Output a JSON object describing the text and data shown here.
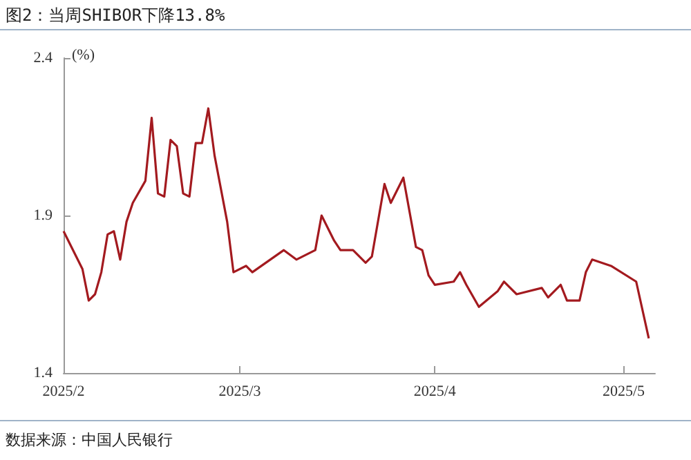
{
  "chart_data": {
    "type": "line",
    "title": "图2：当周SHIBOR下降13.8%",
    "ylabel": "(%)",
    "annotations": [
      "数据来源：中国人民银行"
    ],
    "x": [
      "2025-02-01",
      "2025-02-04",
      "2025-02-05",
      "2025-02-06",
      "2025-02-07",
      "2025-02-08",
      "2025-02-09",
      "2025-02-10",
      "2025-02-11",
      "2025-02-12",
      "2025-02-14",
      "2025-02-15",
      "2025-02-16",
      "2025-02-17",
      "2025-02-18",
      "2025-02-19",
      "2025-02-20",
      "2025-02-21",
      "2025-02-22",
      "2025-02-23",
      "2025-02-24",
      "2025-02-25",
      "2025-02-27",
      "2025-02-28",
      "2025-03-02",
      "2025-03-03",
      "2025-03-08",
      "2025-03-10",
      "2025-03-13",
      "2025-03-14",
      "2025-03-16",
      "2025-03-17",
      "2025-03-19",
      "2025-03-21",
      "2025-03-22",
      "2025-03-24",
      "2025-03-25",
      "2025-03-26",
      "2025-03-27",
      "2025-03-29",
      "2025-03-30",
      "2025-03-31",
      "2025-04-01",
      "2025-04-04",
      "2025-04-05",
      "2025-04-06",
      "2025-04-08",
      "2025-04-11",
      "2025-04-12",
      "2025-04-14",
      "2025-04-18",
      "2025-04-19",
      "2025-04-21",
      "2025-04-22",
      "2025-04-24",
      "2025-04-25",
      "2025-04-26",
      "2025-04-29",
      "2025-05-03",
      "2025-05-05"
    ],
    "series": [
      {
        "color": "#a31a1f",
        "values": [
          1.85,
          1.73,
          1.63,
          1.65,
          1.72,
          1.84,
          1.85,
          1.76,
          1.88,
          1.94,
          2.01,
          2.21,
          1.97,
          1.96,
          2.14,
          2.12,
          1.97,
          1.96,
          2.13,
          2.13,
          2.24,
          2.09,
          1.88,
          1.72,
          1.74,
          1.72,
          1.79,
          1.76,
          1.79,
          1.9,
          1.82,
          1.79,
          1.79,
          1.75,
          1.77,
          2.0,
          1.94,
          1.98,
          2.02,
          1.8,
          1.79,
          1.71,
          1.68,
          1.69,
          1.72,
          1.68,
          1.61,
          1.66,
          1.69,
          1.65,
          1.67,
          1.64,
          1.68,
          1.63,
          1.63,
          1.72,
          1.76,
          1.74,
          1.69,
          1.51
        ]
      }
    ],
    "xlim": [
      "2025-02-01",
      "2025-05-06"
    ],
    "xticks": [
      {
        "value": "2025-02-01",
        "label": "2025/2"
      },
      {
        "value": "2025-03-01",
        "label": "2025/3"
      },
      {
        "value": "2025-04-01",
        "label": "2025/4"
      },
      {
        "value": "2025-05-01",
        "label": "2025/5"
      }
    ],
    "ylim": [
      1.4,
      2.4
    ],
    "yticks": [
      1.4,
      1.9,
      2.4
    ]
  }
}
